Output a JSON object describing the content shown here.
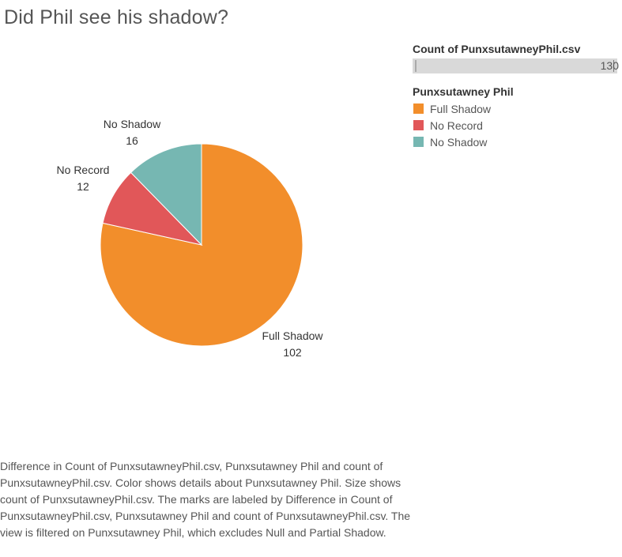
{
  "title": "Did Phil see his shadow?",
  "size_legend": {
    "title": "Count of PunxsutawneyPhil.csv",
    "max_label": "130"
  },
  "color_legend": {
    "title": "Punxsutawney Phil",
    "items": [
      {
        "label": "Full Shadow",
        "color": "#f28e2b"
      },
      {
        "label": "No Record",
        "color": "#e15759"
      },
      {
        "label": "No Shadow",
        "color": "#76b7b2"
      }
    ]
  },
  "chart_data": {
    "type": "pie",
    "title": "Did Phil see his shadow?",
    "slices": [
      {
        "label": "Full Shadow",
        "value": 102,
        "color": "#f28e2b"
      },
      {
        "label": "No Record",
        "value": 12,
        "color": "#e15759"
      },
      {
        "label": "No Shadow",
        "value": 16,
        "color": "#76b7b2"
      }
    ],
    "legend_placement": "top-right"
  },
  "caption": "Difference in Count of PunxsutawneyPhil.csv, Punxsutawney Phil and count of PunxsutawneyPhil.csv.  Color shows details about Punxsutawney Phil.  Size shows count of PunxsutawneyPhil.csv.  The marks are labeled by Difference in Count of PunxsutawneyPhil.csv, Punxsutawney Phil and count of PunxsutawneyPhil.csv. The view is filtered on Punxsutawney Phil, which excludes Null and Partial Shadow."
}
